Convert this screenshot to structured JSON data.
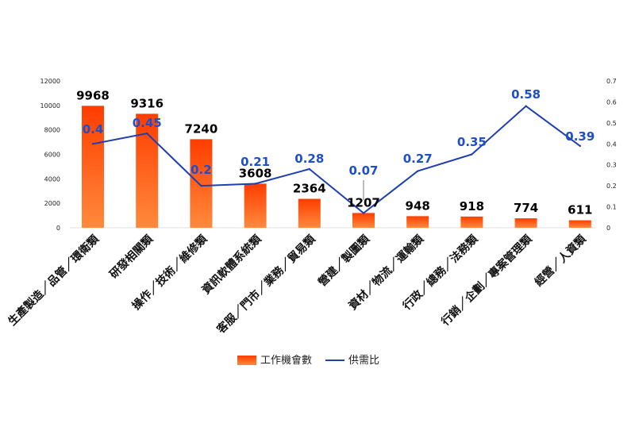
{
  "chart_data": {
    "type": "bar",
    "categories": [
      "生產製造／品管／環衛類",
      "研發相關類",
      "操作／技術／維修類",
      "資訊軟體系統類",
      "客服／門市／業務／貿易類",
      "營建／製圖類",
      "資材／物流／運輸類",
      "行政／總務／法務類",
      "行銷／企劃／專案管理類",
      "經營／人資類"
    ],
    "series": [
      {
        "name": "工作機會數",
        "type": "bar",
        "axis": "left",
        "values": [
          9968,
          9316,
          7240,
          3608,
          2364,
          1207,
          948,
          918,
          774,
          611
        ],
        "labels": [
          "9968",
          "9316",
          "7240",
          "3608",
          "2364",
          "1207",
          "948",
          "918",
          "774",
          "611"
        ]
      },
      {
        "name": "供需比",
        "type": "line",
        "axis": "right",
        "values": [
          0.4,
          0.45,
          0.2,
          0.21,
          0.28,
          0.07,
          0.27,
          0.35,
          0.58,
          0.39
        ],
        "labels": [
          "0.4",
          "0.45",
          "0.2",
          "0.21",
          "0.28",
          "0.07",
          "0.27",
          "0.35",
          "0.58",
          "0.39"
        ]
      }
    ],
    "ylim": [
      0,
      12000
    ],
    "y2lim": [
      0,
      0.7
    ],
    "yticks": [
      "0",
      "2000",
      "4000",
      "6000",
      "8000",
      "10000",
      "12000"
    ],
    "y2ticks": [
      "0",
      "0.1",
      "0.2",
      "0.3",
      "0.4",
      "0.5",
      "0.6",
      "0.7"
    ],
    "grid": false,
    "legend": "bottom",
    "colors": {
      "bar_top": "#ff3d00",
      "bar_bottom": "#ff8a3c",
      "line": "#1f3fb0",
      "line_label": "#1f4fc8"
    }
  }
}
